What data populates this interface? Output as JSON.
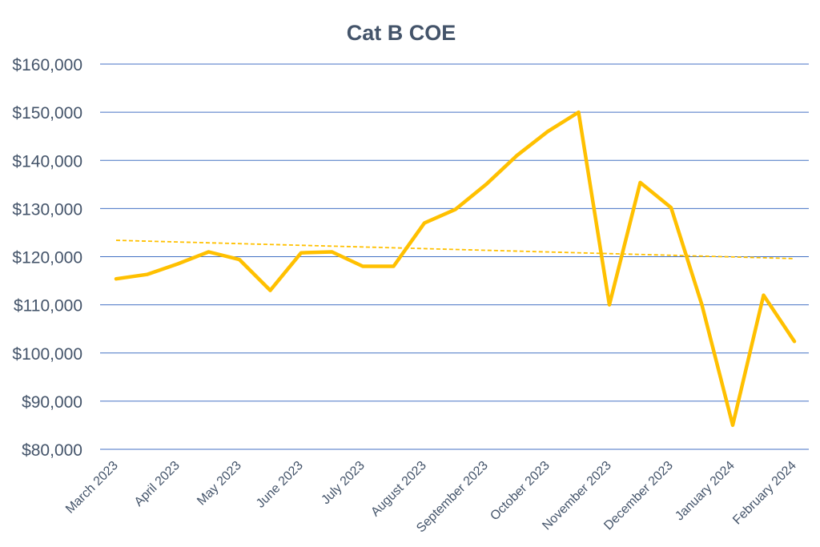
{
  "chart_data": {
    "type": "line",
    "title": "Cat B COE",
    "xlabel": "",
    "ylabel": "",
    "ylim": [
      80000,
      160000
    ],
    "y_ticks": [
      "$80,000",
      "$90,000",
      "$100,000",
      "$110,000",
      "$120,000",
      "$130,000",
      "$140,000",
      "$150,000",
      "$160,000"
    ],
    "y_tick_values": [
      80000,
      90000,
      100000,
      110000,
      120000,
      130000,
      140000,
      150000,
      160000
    ],
    "x_tick_labels": [
      "March 2023",
      "April 2023",
      "May 2023",
      "June 2023",
      "July 2023",
      "August 2023",
      "September 2023",
      "October 2023",
      "November 2023",
      "December 2023",
      "January 2024",
      "February 2024"
    ],
    "grid": true,
    "legend": "none",
    "series": [
      {
        "values": [
          115400,
          116300,
          118500,
          121000,
          119400,
          113000,
          120800,
          121000,
          118000,
          118000,
          127000,
          129800,
          135000,
          141000,
          146000,
          150000,
          110000,
          135400,
          130200,
          110000,
          85000,
          112000,
          102400
        ],
        "color": "#ffc000",
        "line_style": "solid"
      }
    ],
    "trendline": {
      "type": "linear",
      "start_value": 123400,
      "end_value": 119600,
      "color": "#ffc000",
      "line_style": "dashed"
    },
    "gridline_color": "#4472c4"
  }
}
